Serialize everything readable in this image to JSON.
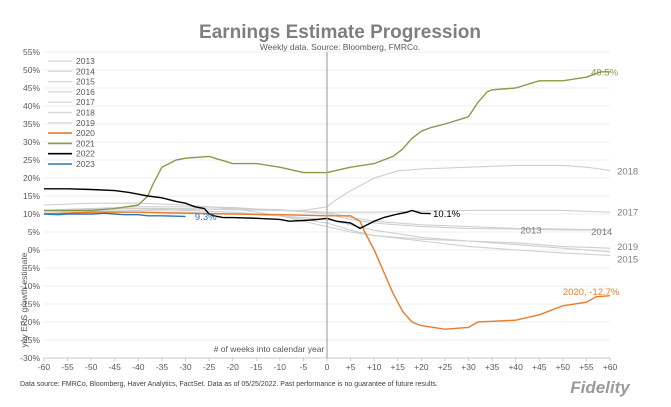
{
  "chart_data": {
    "type": "line",
    "title": "Earnings Estimate Progression",
    "subtitle": "Weekly data.  Source: Bloomberg, FMRCo.",
    "xlabel": "# of weeks into calendar year",
    "ylabel": "yoy EPS growth estimate",
    "xlim": [
      -60,
      60
    ],
    "ylim": [
      -30,
      55
    ],
    "x_ticks": [
      -60,
      -55,
      -50,
      -45,
      -40,
      -35,
      -30,
      -25,
      -20,
      -15,
      -10,
      -5,
      0,
      5,
      10,
      15,
      20,
      25,
      30,
      35,
      40,
      45,
      50,
      55,
      60
    ],
    "x_tick_labels": [
      "-60",
      "-55",
      "-50",
      "-45",
      "-40",
      "-35",
      "-30",
      "-25",
      "-20",
      "-15",
      "-10",
      "-5",
      "0",
      "+5",
      "+10",
      "+15",
      "+20",
      "+25",
      "+30",
      "+35",
      "+40",
      "+45",
      "+50",
      "+55",
      "+60"
    ],
    "y_ticks": [
      -30,
      -25,
      -20,
      -15,
      -10,
      -5,
      0,
      5,
      10,
      15,
      20,
      25,
      30,
      35,
      40,
      45,
      50,
      55
    ],
    "y_tick_labels": [
      "-30%",
      "-25%",
      "-20%",
      "-15%",
      "-10%",
      "-5%",
      "0%",
      "5%",
      "10%",
      "15%",
      "20%",
      "25%",
      "30%",
      "35%",
      "40%",
      "45%",
      "50%",
      "55%"
    ],
    "legend": [
      {
        "name": "2013",
        "color": "#d6d6d6"
      },
      {
        "name": "2014",
        "color": "#d6d6d6"
      },
      {
        "name": "2015",
        "color": "#d6d6d6"
      },
      {
        "name": "2016",
        "color": "#d6d6d6"
      },
      {
        "name": "2017",
        "color": "#d6d6d6"
      },
      {
        "name": "2018",
        "color": "#d6d6d6"
      },
      {
        "name": "2019",
        "color": "#d6d6d6"
      },
      {
        "name": "2020",
        "color": "#e97c2c"
      },
      {
        "name": "2021",
        "color": "#8a9a4a"
      },
      {
        "name": "2022",
        "color": "#000000"
      },
      {
        "name": "2023",
        "color": "#2e75b6"
      }
    ],
    "series": [
      {
        "name": "2013",
        "color": "#cfcfcf",
        "width": 1.1,
        "x": [
          -60,
          -50,
          -40,
          -30,
          -20,
          -10,
          0,
          5,
          10,
          20,
          30,
          40,
          50,
          60
        ],
        "y": [
          10.5,
          10.8,
          11,
          11.2,
          11.5,
          11.2,
          10,
          8.5,
          7.5,
          6.5,
          6,
          5.8,
          5.6,
          5.5
        ]
      },
      {
        "name": "2014",
        "color": "#cfcfcf",
        "width": 1.1,
        "x": [
          -60,
          -50,
          -40,
          -30,
          -20,
          -10,
          0,
          5,
          10,
          20,
          30,
          40,
          50,
          60
        ],
        "y": [
          11,
          11.5,
          12,
          12,
          11.8,
          11,
          10.5,
          9,
          8,
          7,
          6.5,
          6,
          5.8,
          5.5
        ]
      },
      {
        "name": "2015",
        "color": "#cfcfcf",
        "width": 1.1,
        "x": [
          -60,
          -50,
          -40,
          -30,
          -20,
          -10,
          0,
          5,
          10,
          20,
          30,
          40,
          50,
          60
        ],
        "y": [
          11,
          11.5,
          11.5,
          11,
          10.5,
          9.5,
          7.5,
          5.5,
          4,
          2.5,
          1,
          0,
          -0.8,
          -1.5
        ]
      },
      {
        "name": "2016",
        "color": "#cfcfcf",
        "width": 1.1,
        "x": [
          -60,
          -50,
          -40,
          -30,
          -20,
          -10,
          0,
          5,
          10,
          20,
          30,
          40,
          50,
          60
        ],
        "y": [
          12.5,
          13,
          13,
          12.5,
          11.5,
          9.5,
          6.5,
          5,
          4,
          3,
          2.5,
          1.5,
          0.5,
          -0.5
        ]
      },
      {
        "name": "2017",
        "color": "#cfcfcf",
        "width": 1.1,
        "x": [
          -60,
          -50,
          -40,
          -30,
          -20,
          -10,
          0,
          5,
          10,
          20,
          30,
          40,
          50,
          60
        ],
        "y": [
          11,
          11.3,
          11.5,
          11.5,
          11.2,
          11,
          10.5,
          10.5,
          10.5,
          10.8,
          11,
          11,
          11,
          10.5
        ]
      },
      {
        "name": "2018",
        "color": "#cfcfcf",
        "width": 1.1,
        "x": [
          -60,
          -50,
          -40,
          -30,
          -20,
          -10,
          -5,
          0,
          2,
          5,
          8,
          10,
          15,
          20,
          30,
          40,
          50,
          55,
          58,
          60
        ],
        "y": [
          11,
          11.5,
          11.5,
          11.5,
          11.2,
          11,
          11,
          12,
          14,
          16.5,
          18.5,
          20,
          22,
          22.5,
          23,
          23.5,
          23.5,
          23,
          22.5,
          22
        ]
      },
      {
        "name": "2019",
        "color": "#cfcfcf",
        "width": 1.1,
        "x": [
          -60,
          -50,
          -40,
          -30,
          -20,
          -10,
          0,
          5,
          10,
          20,
          30,
          40,
          50,
          60
        ],
        "y": [
          10,
          10.5,
          10.5,
          10.5,
          10,
          9.5,
          8.5,
          7,
          5.5,
          3.5,
          2.5,
          2,
          1,
          0.5
        ]
      },
      {
        "name": "2020",
        "color": "#e97c2c",
        "width": 1.4,
        "x": [
          -60,
          -50,
          -40,
          -30,
          -20,
          -10,
          0,
          5,
          7,
          8,
          10,
          12,
          14,
          16,
          18,
          20,
          25,
          30,
          32,
          35,
          40,
          45,
          50,
          55,
          57,
          60
        ],
        "y": [
          10,
          10.5,
          10.5,
          10.2,
          10,
          9.8,
          9.5,
          9.5,
          8,
          5,
          0,
          -6,
          -12,
          -17,
          -20,
          -21,
          -22,
          -21.5,
          -20,
          -19.8,
          -19.5,
          -18,
          -15.5,
          -14.5,
          -13,
          -12.7
        ]
      },
      {
        "name": "2021",
        "color": "#8a9a4a",
        "width": 1.4,
        "x": [
          -60,
          -50,
          -45,
          -40,
          -38,
          -37,
          -35,
          -32,
          -30,
          -25,
          -20,
          -15,
          -10,
          -5,
          0,
          5,
          10,
          14,
          16,
          18,
          20,
          22,
          25,
          30,
          32,
          34,
          35,
          40,
          45,
          50,
          55,
          58,
          60
        ],
        "y": [
          11,
          11,
          11.5,
          12.5,
          15,
          18,
          23,
          25,
          25.5,
          26,
          24,
          24,
          23,
          21.5,
          21.5,
          23,
          24,
          26,
          28,
          31,
          33,
          34,
          35,
          37,
          41,
          44,
          44.5,
          45,
          47,
          47,
          48,
          49.5,
          49.5
        ]
      },
      {
        "name": "2022",
        "color": "#000000",
        "width": 1.4,
        "x": [
          -60,
          -55,
          -50,
          -45,
          -42,
          -40,
          -38,
          -35,
          -32,
          -30,
          -28,
          -26,
          -25,
          -24,
          -22,
          -20,
          -15,
          -10,
          -8,
          -5,
          -2,
          0,
          2,
          5,
          7,
          10,
          12,
          15,
          17,
          18,
          20,
          22
        ],
        "y": [
          17,
          17,
          16.8,
          16.5,
          16,
          15.5,
          15,
          14.5,
          13.5,
          13,
          12,
          11.5,
          10,
          9.5,
          9,
          9,
          8.8,
          8.5,
          8,
          8.2,
          8.5,
          8.8,
          8,
          7.5,
          6,
          8,
          9,
          10,
          10.5,
          11,
          10.2,
          10.1
        ]
      },
      {
        "name": "2023",
        "color": "#2e75b6",
        "width": 1.4,
        "x": [
          -60,
          -57,
          -55,
          -50,
          -47,
          -45,
          -43,
          -40,
          -38,
          -35,
          -32,
          -30
        ],
        "y": [
          10,
          9.8,
          10,
          10,
          10.2,
          10,
          9.8,
          9.8,
          9.5,
          9.5,
          9.4,
          9.3
        ]
      }
    ],
    "annotations": [
      {
        "text": "49.5%",
        "x": 56,
        "y": 49.5,
        "color": "#8a9a4a"
      },
      {
        "text": "2018",
        "x": 61.5,
        "y": 22,
        "color": "#7f7f7f"
      },
      {
        "text": "10.1%",
        "x": 22.5,
        "y": 10.1,
        "color": "#000000"
      },
      {
        "text": "9.3%",
        "x": -28,
        "y": 9.3,
        "color": "#2e75b6"
      },
      {
        "text": "2017",
        "x": 61.5,
        "y": 10.5,
        "color": "#7f7f7f"
      },
      {
        "text": "2013",
        "x": 41,
        "y": 5.5,
        "color": "#7f7f7f"
      },
      {
        "text": "2014",
        "x": 56,
        "y": 5.2,
        "color": "#7f7f7f"
      },
      {
        "text": "2019",
        "x": 61.5,
        "y": 1,
        "color": "#7f7f7f"
      },
      {
        "text": "2015",
        "x": 61.5,
        "y": -2.5,
        "color": "#7f7f7f"
      },
      {
        "text": "2020, -12.7%",
        "x": 50,
        "y": -11.5,
        "color": "#e97c2c"
      }
    ],
    "vertical_line_at": 0
  },
  "source_note": "Data source: FMRCo, Bloomberg, Haver Analytics, FactSet. Data as of 05/25/2022. Past performance is no guarantee of future results.",
  "logo_text": "Fidelity"
}
